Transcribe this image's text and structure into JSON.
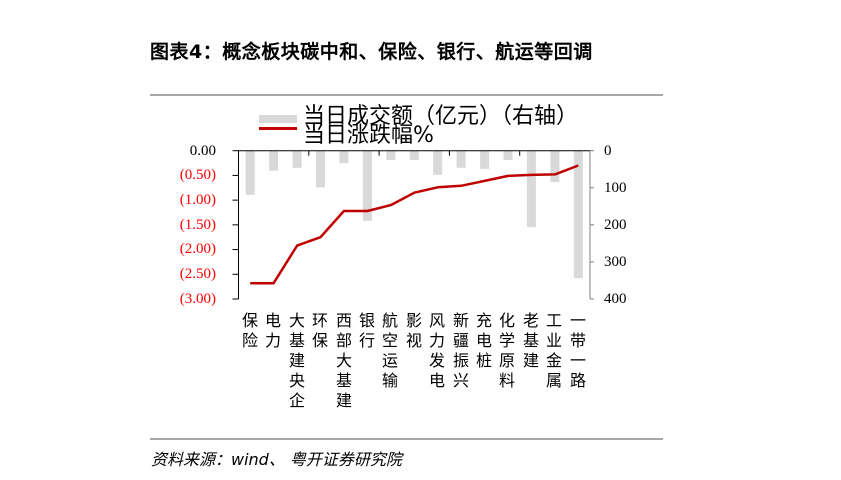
{
  "title": "图表4：概念板块碳中和、保险、银行、航运等回调",
  "source": "资料来源：wind、 粤开证券研究院",
  "colors": {
    "bar": "#d9d9d9",
    "line": "#c00000",
    "negative_label": "#ff0000",
    "rule": "#a6a6a6"
  },
  "legend": [
    {
      "label": "当日成交额（亿元）（右轴）",
      "swatch": "bar"
    },
    {
      "label": "当日涨跌幅%",
      "swatch": "line"
    }
  ],
  "chart_data": {
    "type": "bar",
    "title": "图表4：概念板块碳中和、保险、银行、航运等回调",
    "xlabel": "",
    "ylabel": "",
    "categories": [
      "保险",
      "电力",
      "大基建央企",
      "环保",
      "西部大基建",
      "银行",
      "航空运输",
      "影视",
      "风力发电",
      "新疆振兴",
      "充电桩",
      "化学原料",
      "老基建",
      "工业金属",
      "一带一路"
    ],
    "series": [
      {
        "name": "当日成交额（亿元）（右轴）",
        "type": "bar",
        "axis": "right",
        "values": [
          119,
          54,
          46,
          99,
          34,
          189,
          25,
          25,
          65,
          46,
          49,
          25,
          206,
          85,
          344
        ]
      },
      {
        "name": "当日涨跌幅%",
        "type": "line",
        "axis": "left",
        "values": [
          -2.68,
          -2.68,
          -1.92,
          -1.75,
          -1.22,
          -1.22,
          -1.1,
          -0.85,
          -0.74,
          -0.71,
          -0.61,
          -0.51,
          -0.49,
          -0.48,
          -0.3
        ]
      }
    ],
    "y_left": {
      "range": [
        -3.0,
        0.0
      ],
      "tick_labels": [
        "0.00",
        "(0.50)",
        "(1.00)",
        "(1.50)",
        "(2.00)",
        "(2.50)",
        "(3.00)"
      ]
    },
    "y_right": {
      "range": [
        0,
        400
      ],
      "inverted": true,
      "tick_labels": [
        "0",
        "100",
        "200",
        "300",
        "400"
      ]
    },
    "category_axis_position": "top",
    "legend_position": "top",
    "grid": false
  }
}
